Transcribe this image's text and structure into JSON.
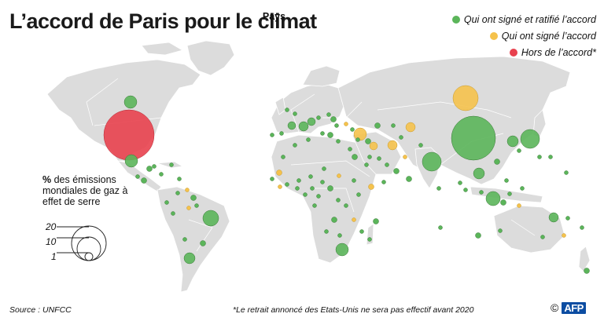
{
  "title": "L’accord de Paris pour le climat",
  "legend": {
    "header": "Pays",
    "items": [
      {
        "label": "Qui ont signé et ratifié l’accord",
        "color": "#5bb55a"
      },
      {
        "label": "Qui ont signé  l’accord",
        "color": "#f5c24c"
      },
      {
        "label": "Hors de l’accord*",
        "color": "#e8414e"
      }
    ]
  },
  "size_legend": {
    "label_bold": "%",
    "label_rest": " des émissions mondiales de gaz à effet de serre",
    "values": [
      "20",
      "10",
      "1"
    ]
  },
  "footer": {
    "source": "Source : UNFCC",
    "note": "*Le retrait annoncé des Etats-Unis ne sera pas effectif avant 2020",
    "credit_symbol": "©",
    "credit": "AFP"
  },
  "colors": {
    "land": "#dcdcdc",
    "border": "#ffffff",
    "ratified": "#5bb55a",
    "signed": "#f5c24c",
    "outside": "#e8414e"
  }
}
